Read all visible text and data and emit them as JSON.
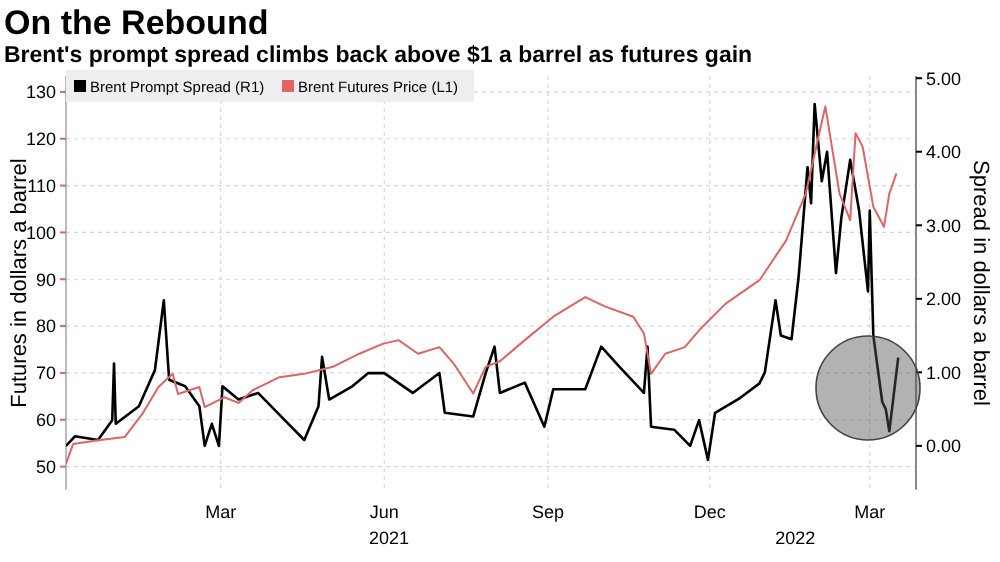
{
  "chart_data": {
    "type": "line",
    "title": "On the Rebound",
    "subtitle": "Brent's prompt spread climbs back above $1 a barrel as futures gain",
    "ylabel": "Futures in dollars a barrel",
    "y2label": "Spread in dollars a barrel",
    "xlim": [
      "2020-12-04",
      "2022-03-27"
    ],
    "xticks": [
      {
        "value": "2021-03-01",
        "label": "Mar"
      },
      {
        "value": "2021-06-01",
        "label": "Jun"
      },
      {
        "value": "2021-09-01",
        "label": "Sep"
      },
      {
        "value": "2021-12-01",
        "label": "Dec"
      },
      {
        "value": "2022-03-01",
        "label": "Mar"
      }
    ],
    "ylim": [
      45,
      133.4
    ],
    "yticks": [
      50,
      60,
      70,
      80,
      90,
      100,
      110,
      120,
      130
    ],
    "y2lim": [
      -0.6,
      5.03
    ],
    "y2ticks": [
      {
        "value": 0,
        "label": "0.00"
      },
      {
        "value": 1,
        "label": "1.00"
      },
      {
        "value": 2,
        "label": "2.00"
      },
      {
        "value": 3,
        "label": "3.00"
      },
      {
        "value": 4,
        "label": "4.00"
      },
      {
        "value": 5,
        "label": "5.00"
      }
    ],
    "grid": true,
    "legend": "top left",
    "annotations": [
      "2021",
      "2022"
    ],
    "series": [
      {
        "name": "Brent Prompt Spread (R1)",
        "color": "#000000",
        "axis": "y2",
        "x": [
          "2020-12-04",
          "2020-12-09",
          "2020-12-22",
          "2020-12-30",
          "2020-12-31",
          "2021-01-01",
          "2021-01-14",
          "2021-01-23",
          "2021-01-28",
          "2021-01-31",
          "2021-02-09",
          "2021-02-17",
          "2021-02-20",
          "2021-02-24",
          "2021-02-28",
          "2021-03-02",
          "2021-03-11",
          "2021-03-22",
          "2021-04-06",
          "2021-04-17",
          "2021-04-25",
          "2021-04-27",
          "2021-05-01",
          "2021-05-14",
          "2021-05-23",
          "2021-06-01",
          "2021-06-17",
          "2021-07-02",
          "2021-07-05",
          "2021-07-21",
          "2021-07-28",
          "2021-08-02",
          "2021-08-05",
          "2021-08-19",
          "2021-08-30",
          "2021-09-04",
          "2021-09-22",
          "2021-10-01",
          "2021-10-11",
          "2021-10-25",
          "2021-10-27",
          "2021-10-29",
          "2021-11-11",
          "2021-11-20",
          "2021-11-25",
          "2021-11-30",
          "2021-12-04",
          "2021-12-18",
          "2021-12-29",
          "2022-01-01",
          "2022-01-07",
          "2022-01-10",
          "2022-01-16",
          "2022-01-20",
          "2022-01-25",
          "2022-01-27",
          "2022-01-29",
          "2022-02-02",
          "2022-02-05",
          "2022-02-10",
          "2022-02-13",
          "2022-02-18",
          "2022-02-23",
          "2022-02-28",
          "2022-03-01",
          "2022-03-03",
          "2022-03-08",
          "2022-03-10",
          "2022-03-12",
          "2022-03-17"
        ],
        "values": [
          0.0,
          0.13,
          0.08,
          0.35,
          1.12,
          0.3,
          0.54,
          1.03,
          1.98,
          0.9,
          0.81,
          0.54,
          0.0,
          0.3,
          0.0,
          0.81,
          0.63,
          0.72,
          0.35,
          0.08,
          0.54,
          1.21,
          0.63,
          0.81,
          0.99,
          0.99,
          0.72,
          0.99,
          0.45,
          0.4,
          0.99,
          1.35,
          0.72,
          0.86,
          0.26,
          0.77,
          0.77,
          1.35,
          1.08,
          0.72,
          1.35,
          0.26,
          0.22,
          0.0,
          0.35,
          -0.19,
          0.45,
          0.65,
          0.85,
          1.0,
          1.98,
          1.5,
          1.45,
          2.3,
          3.79,
          3.3,
          4.65,
          3.6,
          4.0,
          2.35,
          3.1,
          3.89,
          3.2,
          2.1,
          3.2,
          1.5,
          0.6,
          0.5,
          0.2,
          1.2
        ]
      },
      {
        "name": "Brent Futures Price (L1)",
        "color": "#e06464",
        "axis": "y",
        "x": [
          "2020-12-04",
          "2020-12-08",
          "2020-12-22",
          "2021-01-06",
          "2021-01-16",
          "2021-01-25",
          "2021-02-02",
          "2021-02-05",
          "2021-02-17",
          "2021-02-20",
          "2021-03-03",
          "2021-03-11",
          "2021-03-19",
          "2021-04-03",
          "2021-04-17",
          "2021-05-03",
          "2021-05-18",
          "2021-05-31",
          "2021-06-09",
          "2021-06-20",
          "2021-07-02",
          "2021-07-10",
          "2021-07-21",
          "2021-07-28",
          "2021-08-05",
          "2021-08-19",
          "2021-09-04",
          "2021-09-22",
          "2021-10-03",
          "2021-10-19",
          "2021-10-25",
          "2021-10-29",
          "2021-11-06",
          "2021-11-17",
          "2021-11-25",
          "2021-12-10",
          "2021-12-29",
          "2022-01-13",
          "2022-01-24",
          "2022-02-04",
          "2022-02-12",
          "2022-02-18",
          "2022-02-21",
          "2022-02-25",
          "2022-03-03",
          "2022-03-09",
          "2022-03-12",
          "2022-03-16"
        ],
        "values": [
          50.6,
          54.8,
          55.6,
          56.3,
          61.3,
          67.0,
          69.8,
          65.5,
          67.0,
          62.7,
          64.8,
          63.6,
          66.3,
          69.1,
          69.8,
          71.3,
          74.1,
          76.2,
          77.0,
          74.1,
          75.5,
          72.0,
          65.6,
          71.3,
          72.5,
          77.0,
          82.0,
          86.2,
          84.2,
          82.0,
          78.4,
          69.8,
          74.1,
          75.5,
          79.1,
          84.8,
          89.8,
          98.3,
          108.3,
          126.9,
          108.3,
          102.6,
          121.2,
          118.3,
          105.5,
          101.2,
          108.3,
          112.6
        ]
      }
    ]
  }
}
